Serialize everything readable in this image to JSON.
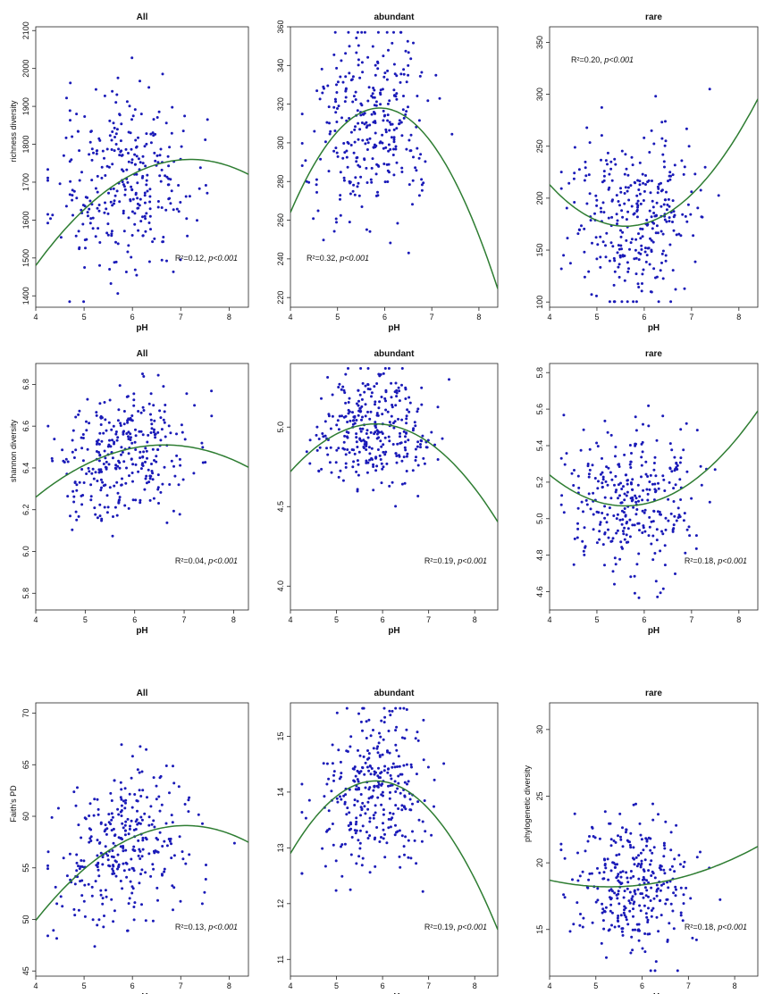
{
  "chart_data": [
    {
      "type": "scatter",
      "title": "All",
      "xlabel": "pH",
      "ylabel": "richness diversity",
      "xlim": [
        4,
        8.4
      ],
      "ylim": [
        1370,
        2110
      ],
      "xticks": [
        4,
        5,
        6,
        7,
        8
      ],
      "yticks": [
        1400,
        1500,
        1600,
        1700,
        1800,
        1900,
        2000,
        2100
      ],
      "stat_r2": "R²=0.12, ",
      "stat_p": "p<0.001",
      "stat_pos": "bottom-right",
      "fit": {
        "vertex_x": 7.2,
        "vertex_y": 1760,
        "x_ref": 4,
        "y_ref": 1480
      },
      "points": {
        "n": 320,
        "cx": 5.8,
        "sx": 0.9,
        "cy": 1700,
        "sy": 150,
        "seed": 11
      }
    },
    {
      "type": "scatter",
      "title": "abundant",
      "xlabel": "pH",
      "ylabel": "",
      "xlim": [
        4,
        8.4
      ],
      "ylim": [
        215,
        360
      ],
      "xticks": [
        4,
        5,
        6,
        7,
        8
      ],
      "yticks": [
        220,
        240,
        260,
        280,
        300,
        320,
        340,
        360
      ],
      "stat_r2": "R²=0.32, ",
      "stat_p": "p<0.001",
      "stat_pos": "bottom-left",
      "fit": {
        "vertex_x": 5.9,
        "vertex_y": 318,
        "x_ref": 4,
        "y_ref": 264
      },
      "points": {
        "n": 320,
        "cx": 5.8,
        "sx": 0.8,
        "cy": 305,
        "sy": 30,
        "seed": 22
      }
    },
    {
      "type": "scatter",
      "title": "rare",
      "xlabel": "pH",
      "ylabel": "",
      "xlim": [
        4,
        8.4
      ],
      "ylim": [
        95,
        365
      ],
      "xticks": [
        4,
        5,
        6,
        7,
        8
      ],
      "yticks": [
        100,
        150,
        200,
        250,
        300,
        350
      ],
      "stat_r2": "R²=0.20, ",
      "stat_p": "p<0.001",
      "stat_pos": "top-left",
      "fit": {
        "vertex_x": 5.6,
        "vertex_y": 173,
        "x_ref": 4,
        "y_ref": 213
      },
      "points": {
        "n": 320,
        "cx": 5.8,
        "sx": 0.9,
        "cy": 185,
        "sy": 50,
        "seed": 33
      }
    },
    {
      "type": "scatter",
      "title": "All",
      "xlabel": "pH",
      "ylabel": "shannon diversity",
      "xlim": [
        4,
        8.3
      ],
      "ylim": [
        5.72,
        6.9
      ],
      "xticks": [
        4,
        5,
        6,
        7,
        8
      ],
      "yticks": [
        5.8,
        6.0,
        6.2,
        6.4,
        6.6,
        6.8
      ],
      "stat_r2": "R²=0.04, ",
      "stat_p": "p<0.001",
      "stat_pos": "bottom-right",
      "fit": {
        "vertex_x": 6.6,
        "vertex_y": 6.51,
        "x_ref": 4,
        "y_ref": 6.26
      },
      "points": {
        "n": 320,
        "cx": 5.8,
        "sx": 0.9,
        "cy": 6.45,
        "sy": 0.2,
        "seed": 44
      }
    },
    {
      "type": "scatter",
      "title": "abundant",
      "xlabel": "pH",
      "ylabel": "",
      "xlim": [
        4,
        8.5
      ],
      "ylim": [
        3.85,
        5.4
      ],
      "xticks": [
        4,
        5,
        6,
        7,
        8
      ],
      "yticks": [
        4.0,
        4.5,
        5.0
      ],
      "stat_r2": "R²=0.19, ",
      "stat_p": "p<0.001",
      "stat_pos": "bottom-right",
      "fit": {
        "vertex_x": 5.85,
        "vertex_y": 5.02,
        "x_ref": 4,
        "y_ref": 4.72
      },
      "points": {
        "n": 320,
        "cx": 5.8,
        "sx": 0.8,
        "cy": 4.98,
        "sy": 0.22,
        "seed": 55
      }
    },
    {
      "type": "scatter",
      "title": "rare",
      "xlabel": "pH",
      "ylabel": "",
      "xlim": [
        4,
        8.4
      ],
      "ylim": [
        4.5,
        5.85
      ],
      "xticks": [
        4,
        5,
        6,
        7,
        8
      ],
      "yticks": [
        4.6,
        4.8,
        5.0,
        5.2,
        5.4,
        5.6,
        5.8
      ],
      "stat_r2": "R²=0.18, ",
      "stat_p": "p<0.001",
      "stat_pos": "bottom-right",
      "fit": {
        "vertex_x": 5.6,
        "vertex_y": 5.07,
        "x_ref": 4,
        "y_ref": 5.24
      },
      "points": {
        "n": 320,
        "cx": 5.8,
        "sx": 0.9,
        "cy": 5.15,
        "sy": 0.25,
        "seed": 66
      }
    },
    {
      "type": "scatter",
      "title": "All",
      "xlabel": "pH",
      "ylabel": "Faith's PD",
      "xlim": [
        4,
        8.4
      ],
      "ylim": [
        44.5,
        71
      ],
      "xticks": [
        4,
        5,
        6,
        7,
        8
      ],
      "yticks": [
        45,
        50,
        55,
        60,
        65,
        70
      ],
      "stat_r2": "R²=0.13, ",
      "stat_p": "p<0.001",
      "stat_pos": "bottom-right",
      "fit": {
        "vertex_x": 7.1,
        "vertex_y": 59.1,
        "x_ref": 4,
        "y_ref": 49.9
      },
      "points": {
        "n": 320,
        "cx": 5.8,
        "sx": 0.9,
        "cy": 56.5,
        "sy": 4.5,
        "seed": 77
      }
    },
    {
      "type": "scatter",
      "title": "abundant",
      "xlabel": "pH",
      "ylabel": "",
      "xlim": [
        4,
        8.5
      ],
      "ylim": [
        10.7,
        15.6
      ],
      "xticks": [
        4,
        5,
        6,
        7,
        8
      ],
      "yticks": [
        11,
        12,
        13,
        14,
        15
      ],
      "stat_r2": "R²=0.19, ",
      "stat_p": "p<0.001",
      "stat_pos": "bottom-right",
      "fit": {
        "vertex_x": 5.85,
        "vertex_y": 14.2,
        "x_ref": 4,
        "y_ref": 12.9
      },
      "points": {
        "n": 320,
        "cx": 5.8,
        "sx": 0.8,
        "cy": 13.9,
        "sy": 0.9,
        "seed": 88
      }
    },
    {
      "type": "scatter",
      "title": "rare",
      "xlabel": "pH",
      "ylabel": "phylogenetic diversity",
      "xlim": [
        4,
        8.5
      ],
      "ylim": [
        11.5,
        32
      ],
      "xticks": [
        4,
        5,
        6,
        7,
        8
      ],
      "yticks": [
        15,
        20,
        25,
        30
      ],
      "stat_r2": "R²=0.18, ",
      "stat_p": "p<0.001",
      "stat_pos": "bottom-right",
      "fit": {
        "vertex_x": 5.3,
        "vertex_y": 18.2,
        "x_ref": 4,
        "y_ref": 18.7
      },
      "points": {
        "n": 320,
        "cx": 5.8,
        "sx": 0.9,
        "cy": 18.5,
        "sy": 3.2,
        "seed": 99
      }
    }
  ],
  "colors": {
    "points": "#1a1ab8",
    "fit": "#2e7d32",
    "axis": "#222222"
  }
}
